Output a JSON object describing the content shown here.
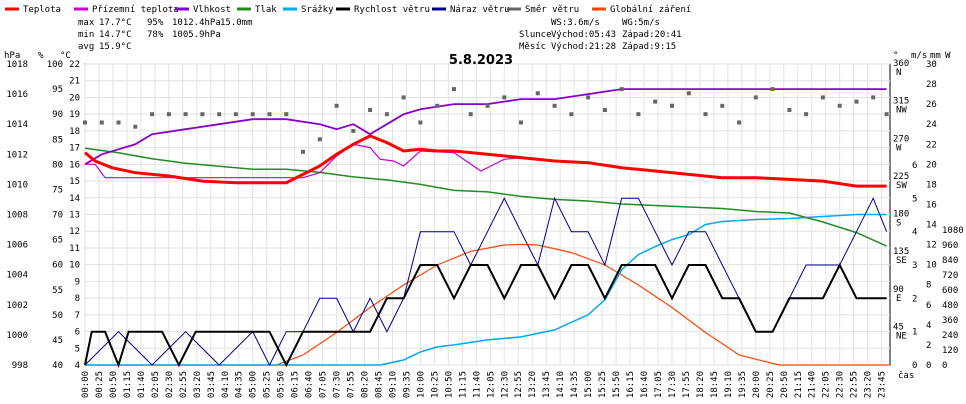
{
  "chart_data": {
    "type": "line",
    "title": "5.8.2023",
    "legend": [
      {
        "name": "Teplota",
        "color": "#ff0000"
      },
      {
        "name": "Přízemní teplota",
        "color": "#cc00cc"
      },
      {
        "name": "Vlhkost",
        "color": "#8800cc"
      },
      {
        "name": "Tlak",
        "color": "#228b22"
      },
      {
        "name": "Srážky",
        "color": "#00aaee"
      },
      {
        "name": "Rychlost větru",
        "color": "#000000"
      },
      {
        "name": "Náraz větru",
        "color": "#000088"
      },
      {
        "name": "Směr větru",
        "color": "#666666"
      },
      {
        "name": "Globální záření",
        "color": "#ff4400"
      }
    ],
    "stats": {
      "max_label": "max",
      "max_temp": "17.7°C",
      "max_hum": "95%",
      "max_press": "1012.4hPa",
      "max_rain": "15.0mm",
      "min_label": "min",
      "min_temp": "14.7°C",
      "min_hum": "78%",
      "min_press": "1005.9hPa",
      "avg_label": "avg",
      "avg_temp": "15.9°C"
    },
    "wind_info": {
      "ws": "WS:3.6m/s",
      "wg": "WG:5m/s"
    },
    "sun": {
      "label": "Slunce",
      "rise": "Východ:05:43",
      "set": "Západ:20:41"
    },
    "moon": {
      "label": "Měsíc",
      "rise": "Východ:21:28",
      "set": "Západ:9:15"
    },
    "axis_units": {
      "hpa": "hPa",
      "pct": "%",
      "degc": "°C",
      "deg": "°",
      "ms": "m/s",
      "mm": "mm",
      "w": "W",
      "time": "čas"
    },
    "y_axes": {
      "hpa": [
        998,
        1000,
        1002,
        1004,
        1006,
        1008,
        1010,
        1012,
        1014,
        1016,
        1018
      ],
      "pct": [
        40,
        45,
        50,
        55,
        60,
        65,
        70,
        75,
        80,
        85,
        90,
        95,
        100
      ],
      "degc": [
        4,
        5,
        6,
        7,
        8,
        9,
        10,
        11,
        12,
        13,
        14,
        15,
        16,
        17,
        18,
        19,
        20,
        21,
        22
      ],
      "dir": [
        {
          "deg": 360,
          "lab": "N"
        },
        {
          "deg": 315,
          "lab": "NW"
        },
        {
          "deg": 270,
          "lab": "W"
        },
        {
          "deg": 225,
          "lab": "SW"
        },
        {
          "deg": 180,
          "lab": "S"
        },
        {
          "deg": 135,
          "lab": "SE"
        },
        {
          "deg": 90,
          "lab": "E"
        },
        {
          "deg": 45,
          "lab": "NE"
        }
      ],
      "ms": [
        0,
        1,
        2,
        3,
        4,
        5,
        6
      ],
      "mm": [
        0,
        2,
        4,
        6,
        8,
        10,
        12,
        14,
        16,
        18,
        20,
        22,
        24,
        26,
        28,
        30
      ],
      "w": [
        0,
        120,
        240,
        360,
        480,
        600,
        720,
        840,
        960,
        1080
      ]
    },
    "x_ticks": [
      "00:00",
      "00:25",
      "00:50",
      "01:15",
      "01:40",
      "02:05",
      "02:30",
      "02:55",
      "03:20",
      "03:45",
      "04:10",
      "04:35",
      "05:00",
      "05:25",
      "05:50",
      "06:15",
      "06:40",
      "07:05",
      "07:30",
      "07:55",
      "08:20",
      "08:45",
      "09:10",
      "09:35",
      "10:00",
      "10:25",
      "10:50",
      "11:15",
      "11:40",
      "12:05",
      "12:30",
      "12:55",
      "13:20",
      "13:45",
      "14:10",
      "14:35",
      "15:00",
      "15:25",
      "15:50",
      "16:15",
      "16:40",
      "17:05",
      "17:30",
      "17:55",
      "18:20",
      "18:45",
      "19:10",
      "19:35",
      "20:00",
      "20:25",
      "20:50",
      "21:15",
      "21:40",
      "22:05",
      "22:30",
      "22:55",
      "23:20",
      "23:45"
    ],
    "x_range_hours": [
      0,
      24
    ],
    "series": [
      {
        "name": "Teplota",
        "unit": "°C",
        "x": [
          0,
          0.3,
          0.8,
          1.5,
          2.5,
          3.5,
          4.5,
          5.5,
          6.0,
          6.5,
          7.0,
          7.5,
          8.0,
          8.5,
          9.0,
          9.5,
          10.0,
          10.5,
          11.0,
          12.0,
          13.0,
          14.0,
          15.0,
          16.0,
          17.0,
          18.0,
          19.0,
          20.0,
          21.0,
          22.0,
          23.0,
          23.9
        ],
        "y": [
          16.7,
          16.2,
          15.8,
          15.5,
          15.3,
          15.0,
          14.9,
          14.9,
          14.9,
          15.4,
          15.9,
          16.6,
          17.2,
          17.7,
          17.3,
          16.8,
          16.9,
          16.8,
          16.8,
          16.6,
          16.4,
          16.2,
          16.1,
          15.8,
          15.6,
          15.4,
          15.2,
          15.2,
          15.1,
          15.0,
          14.7,
          14.7
        ]
      },
      {
        "name": "Přízemní teplota",
        "unit": "°C",
        "x": [
          0,
          0.3,
          0.6,
          1.2,
          3.0,
          5.0,
          6.5,
          7.0,
          7.5,
          8.0,
          8.5,
          8.8,
          9.2,
          9.5,
          10.0,
          11.0,
          11.8,
          12.1,
          12.5,
          13.0
        ],
        "y": [
          16.0,
          16.0,
          15.2,
          15.2,
          15.2,
          15.2,
          15.2,
          15.5,
          16.5,
          17.2,
          17.0,
          16.3,
          16.2,
          15.9,
          16.8,
          16.7,
          15.6,
          15.9,
          16.3,
          16.4
        ]
      },
      {
        "name": "Vlhkost",
        "unit": "%",
        "x": [
          0,
          0.5,
          1.0,
          1.5,
          2.0,
          3.0,
          4.0,
          5.0,
          6.0,
          7.0,
          7.5,
          8.0,
          8.5,
          9.0,
          9.5,
          10.0,
          11.0,
          12.0,
          13.0,
          14.0,
          15.0,
          16.0,
          17.0,
          18.0,
          19.0,
          20.0,
          21.0,
          22.0,
          23.0,
          23.9
        ],
        "y": [
          80,
          82,
          83,
          84,
          86,
          87,
          88,
          89,
          89,
          88,
          87,
          88,
          86,
          88,
          90,
          91,
          92,
          92,
          93,
          93,
          94,
          95,
          95,
          95,
          95,
          95,
          95,
          95,
          95,
          95
        ]
      },
      {
        "name": "Tlak",
        "unit": "hPa",
        "x": [
          0,
          1,
          2,
          3,
          4,
          5,
          6,
          7,
          8,
          9,
          10,
          11,
          12,
          13,
          14,
          15,
          16,
          17,
          18,
          19,
          20,
          21,
          22,
          23,
          23.9
        ],
        "y": [
          1012.4,
          1012.1,
          1011.7,
          1011.4,
          1011.2,
          1011.0,
          1011.0,
          1010.8,
          1010.5,
          1010.3,
          1010.0,
          1009.6,
          1009.5,
          1009.2,
          1009.0,
          1008.9,
          1008.7,
          1008.6,
          1008.5,
          1008.4,
          1008.2,
          1008.1,
          1007.5,
          1006.8,
          1005.9
        ]
      },
      {
        "name": "Srážky",
        "unit": "mm",
        "x": [
          0,
          8.8,
          9.5,
          10.0,
          10.5,
          11.0,
          12.0,
          13.0,
          14.0,
          15.0,
          15.5,
          16.0,
          16.5,
          17.0,
          17.5,
          18.0,
          18.5,
          19.0,
          20.0,
          21.0,
          22.0,
          23.0,
          23.9
        ],
        "y": [
          0,
          0,
          0.5,
          1.3,
          1.8,
          2.0,
          2.5,
          2.8,
          3.5,
          5.0,
          6.5,
          9.5,
          11.0,
          11.8,
          12.5,
          13.0,
          14.0,
          14.3,
          14.5,
          14.6,
          14.8,
          15.0,
          15.0
        ]
      },
      {
        "name": "Rychlost větru",
        "unit": "m/s",
        "x": [
          0,
          0.2,
          0.6,
          1.0,
          1.3,
          1.8,
          2.3,
          2.8,
          3.3,
          4.0,
          5.0,
          5.5,
          6.0,
          6.5,
          7.0,
          7.5,
          8.0,
          8.5,
          9.0,
          9.5,
          10.0,
          10.5,
          11.0,
          11.5,
          12.0,
          12.5,
          13.0,
          13.5,
          14.0,
          14.5,
          15.0,
          15.5,
          16.0,
          16.5,
          17.0,
          17.5,
          18.0,
          18.5,
          19.0,
          19.5,
          20.0,
          20.5,
          21.0,
          21.5,
          22.0,
          22.5,
          23.0,
          23.5,
          23.9
        ],
        "y": [
          0,
          1,
          1,
          0,
          1,
          1,
          1,
          0,
          1,
          1,
          1,
          1,
          0,
          1,
          1,
          1,
          1,
          1,
          2,
          2,
          3,
          3,
          2,
          3,
          3,
          2,
          3,
          3,
          2,
          3,
          3,
          2,
          3,
          3,
          3,
          2,
          3,
          3,
          2,
          2,
          1,
          1,
          2,
          2,
          2,
          3,
          2,
          2,
          2
        ]
      },
      {
        "name": "Náraz větru",
        "unit": "m/s",
        "x": [
          0,
          1,
          2,
          3,
          4,
          5,
          5.5,
          6.0,
          6.5,
          7.0,
          7.5,
          8.0,
          8.5,
          9.0,
          9.5,
          10.0,
          10.5,
          11.0,
          11.5,
          12.0,
          12.5,
          13.0,
          13.5,
          14.0,
          14.5,
          15.0,
          15.5,
          16.0,
          16.5,
          17.0,
          17.5,
          18.0,
          18.5,
          19.0,
          19.5,
          20.0,
          20.5,
          21.0,
          21.5,
          22.0,
          22.5,
          23.0,
          23.5,
          23.9
        ],
        "y": [
          0,
          1,
          0,
          1,
          0,
          1,
          0,
          1,
          1,
          2,
          2,
          1,
          2,
          1,
          2,
          4,
          4,
          4,
          3,
          4,
          5,
          4,
          3,
          5,
          4,
          4,
          3,
          5,
          5,
          4,
          3,
          4,
          4,
          3,
          2,
          1,
          1,
          2,
          3,
          3,
          3,
          4,
          5,
          4
        ]
      },
      {
        "name": "Směr větru",
        "unit": "°",
        "x": [
          0,
          0.5,
          1.0,
          1.5,
          2.0,
          2.5,
          3.0,
          3.5,
          4.0,
          4.5,
          5.0,
          5.5,
          6.0,
          6.5,
          7.0,
          7.5,
          8.0,
          8.5,
          9.0,
          9.5,
          10.0,
          10.5,
          11.0,
          11.5,
          12.0,
          12.5,
          13.0,
          13.5,
          14.0,
          14.5,
          15.0,
          15.5,
          16.0,
          16.5,
          17.0,
          17.5,
          18.0,
          18.5,
          19.0,
          19.5,
          20.0,
          20.5,
          21.0,
          21.5,
          22.0,
          22.5,
          23.0,
          23.5,
          23.9
        ],
        "y": [
          290,
          290,
          290,
          285,
          300,
          300,
          300,
          300,
          300,
          300,
          300,
          300,
          300,
          255,
          270,
          310,
          280,
          305,
          300,
          320,
          290,
          310,
          330,
          300,
          310,
          320,
          290,
          325,
          310,
          300,
          320,
          305,
          330,
          300,
          315,
          310,
          325,
          300,
          310,
          290,
          320,
          330,
          305,
          300,
          320,
          310,
          315,
          320,
          300
        ]
      },
      {
        "name": "Globální záření",
        "unit": "W",
        "x": [
          0,
          5.7,
          6.5,
          7.5,
          8.5,
          9.5,
          10.5,
          11.5,
          12.5,
          13.0,
          13.5,
          14.5,
          15.5,
          16.5,
          17.5,
          18.5,
          19.5,
          20.7,
          24
        ],
        "y": [
          0,
          0,
          80,
          260,
          460,
          640,
          800,
          910,
          960,
          965,
          960,
          900,
          800,
          640,
          460,
          260,
          80,
          0,
          0
        ]
      }
    ]
  }
}
